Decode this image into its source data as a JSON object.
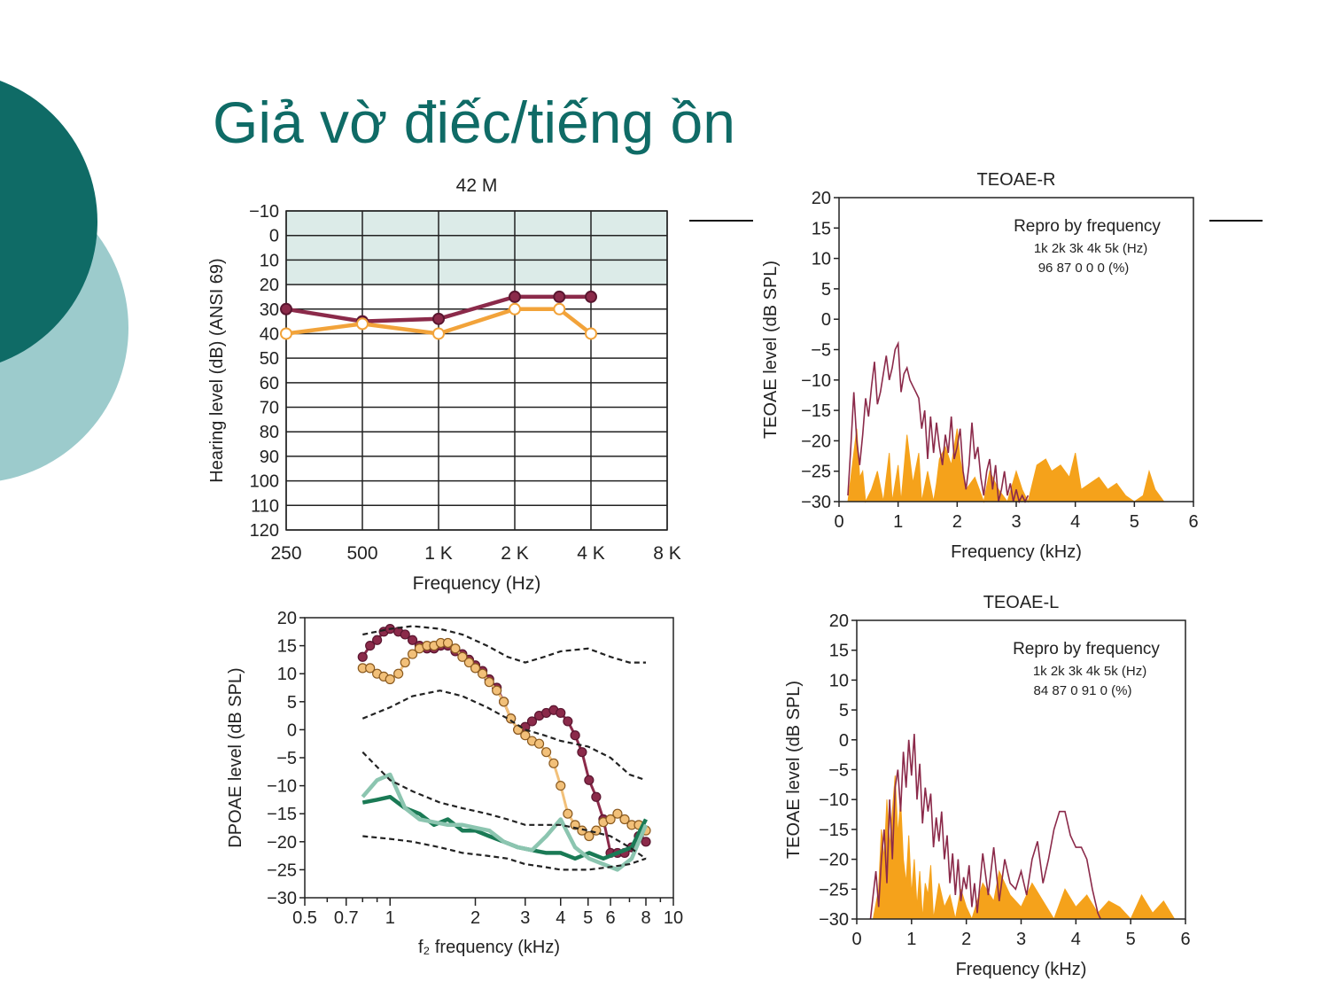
{
  "slide": {
    "title": "Giả vờ điếc/tiếng ồn",
    "colors": {
      "title": "#0f6b66",
      "circle_dark": "#0f6b66",
      "circle_light": "#9ccbcc"
    }
  },
  "chart_data": [
    {
      "id": "audiogram",
      "type": "line",
      "title": "42 M",
      "xlabel": "Frequency (Hz)",
      "ylabel": "Hearing level (dB) (ANSI 69)",
      "x_tick_labels": [
        "250",
        "500",
        "1 K",
        "2 K",
        "4 K",
        "8 K"
      ],
      "y_tick_labels": [
        "−10",
        "0",
        "10",
        "20",
        "30",
        "40",
        "50",
        "60",
        "70",
        "80",
        "90",
        "100",
        "110",
        "120"
      ],
      "ylim": [
        -10,
        120
      ],
      "y_inverted": true,
      "normal_band": [
        -10,
        20
      ],
      "series": [
        {
          "color": "#8b2a4a",
          "x": [
            250,
            500,
            1000,
            2000,
            3000,
            4000
          ],
          "y": [
            30,
            35,
            34,
            25,
            25,
            25
          ]
        },
        {
          "color": "#f2a33a",
          "x": [
            250,
            500,
            1000,
            2000,
            3000,
            4000
          ],
          "y": [
            40,
            36,
            40,
            30,
            30,
            40
          ]
        }
      ]
    },
    {
      "id": "teoae-r",
      "type": "area",
      "title": "TEOAE-R",
      "xlabel": "Frequency (kHz)",
      "ylabel": "TEOAE level (dB SPL)",
      "xlim": [
        0,
        6
      ],
      "ylim": [
        -30,
        20
      ],
      "x_tick_labels": [
        "0",
        "1",
        "2",
        "3",
        "4",
        "5",
        "6"
      ],
      "y_tick_labels": [
        "20",
        "15",
        "10",
        "5",
        "0",
        "−5",
        "−10",
        "−15",
        "−20",
        "−25",
        "−30"
      ],
      "repro": {
        "heading": "Repro by frequency",
        "freqs": "1k  2k  3k  4k  5k  (Hz)",
        "values": "96  87   0    0    0   (%)"
      },
      "response_line": {
        "color": "#8b2a4a",
        "x": [
          0.15,
          0.2,
          0.25,
          0.3,
          0.35,
          0.4,
          0.45,
          0.5,
          0.55,
          0.6,
          0.65,
          0.7,
          0.75,
          0.8,
          0.85,
          0.9,
          0.95,
          1.0,
          1.05,
          1.1,
          1.15,
          1.2,
          1.25,
          1.3,
          1.35,
          1.4,
          1.45,
          1.5,
          1.55,
          1.6,
          1.65,
          1.7,
          1.75,
          1.8,
          1.85,
          1.9,
          1.95,
          2.0,
          2.05,
          2.1,
          2.15,
          2.2,
          2.25,
          2.3,
          2.35,
          2.4,
          2.45,
          2.5,
          2.55,
          2.6,
          2.65,
          2.7,
          2.75,
          2.8,
          2.85,
          2.9,
          2.95,
          3.0,
          3.05,
          3.1,
          3.15,
          3.2
        ],
        "y": [
          -29,
          -21,
          -12,
          -20,
          -24,
          -19,
          -13,
          -16,
          -11,
          -7,
          -14,
          -12,
          -9,
          -6,
          -10,
          -8,
          -5,
          -4,
          -12,
          -9,
          -8,
          -10,
          -11,
          -12,
          -13,
          -18,
          -15,
          -23,
          -16,
          -22,
          -17,
          -21,
          -24,
          -19,
          -22,
          -16,
          -23,
          -21,
          -18,
          -25,
          -28,
          -24,
          -17,
          -23,
          -21,
          -26,
          -29,
          -25,
          -23,
          -28,
          -24,
          -30,
          -28,
          -25,
          -29,
          -27,
          -30,
          -28,
          -30,
          -29,
          -30,
          -29
        ]
      },
      "noise_fill": {
        "color": "#f5a21b",
        "x": [
          0.15,
          0.25,
          0.3,
          0.35,
          0.4,
          0.45,
          0.55,
          0.65,
          0.75,
          0.85,
          0.9,
          1.0,
          1.05,
          1.15,
          1.25,
          1.35,
          1.4,
          1.5,
          1.6,
          1.65,
          1.7,
          1.8,
          1.9,
          2.0,
          2.05,
          2.15,
          2.3,
          2.45,
          2.55,
          2.7,
          2.85,
          3.0,
          3.1,
          3.2,
          3.35,
          3.5,
          3.6,
          3.75,
          3.9,
          4.0,
          4.1,
          4.25,
          4.4,
          4.55,
          4.7,
          4.85,
          5.0,
          5.15,
          5.25,
          5.35,
          5.5,
          5.6
        ],
        "y": [
          -30,
          -22,
          -18,
          -26,
          -25,
          -30,
          -28,
          -25,
          -30,
          -22,
          -30,
          -24,
          -30,
          -19,
          -27,
          -22,
          -30,
          -25,
          -30,
          -27,
          -23,
          -21,
          -24,
          -18,
          -23,
          -28,
          -26,
          -30,
          -25,
          -28,
          -30,
          -25,
          -28,
          -30,
          -24,
          -23,
          -25,
          -24,
          -26,
          -22,
          -28,
          -27,
          -26,
          -28,
          -27,
          -29,
          -30,
          -29,
          -25,
          -28,
          -30,
          -30
        ]
      }
    },
    {
      "id": "dpoae",
      "type": "line",
      "xlabel": "f₂ frequency (kHz)",
      "ylabel": "DPOAE level (dB SPL)",
      "x_scale": "log",
      "xlim": [
        0.5,
        10
      ],
      "ylim": [
        -30,
        20
      ],
      "x_tick_labels": [
        "0.5",
        "0.7",
        "1",
        "2",
        "3",
        "4",
        "5",
        "6",
        "8",
        "10"
      ],
      "y_tick_labels": [
        "20",
        "15",
        "10",
        "5",
        "0",
        "−5",
        "−10",
        "−15",
        "−20",
        "−25",
        "−30"
      ],
      "series": [
        {
          "style": "dots",
          "color": "#8b2a4a",
          "x": [
            0.8,
            0.85,
            0.9,
            0.95,
            1.0,
            1.07,
            1.13,
            1.2,
            1.27,
            1.35,
            1.43,
            1.51,
            1.6,
            1.7,
            1.8,
            1.9,
            2.0,
            2.12,
            2.24,
            2.38,
            2.52,
            2.67,
            2.83,
            3.0,
            3.17,
            3.36,
            3.56,
            3.78,
            4.0,
            4.24,
            4.5,
            4.76,
            5.04,
            5.34,
            5.66,
            6.0,
            6.35,
            6.73,
            7.13,
            7.55,
            8.0
          ],
          "y": [
            13,
            15,
            16,
            17.5,
            18,
            17.5,
            17,
            16,
            15,
            14.5,
            14.5,
            15,
            15,
            14,
            13.5,
            12.5,
            11.5,
            10.5,
            9,
            7.5,
            5,
            2,
            0,
            0.5,
            1.5,
            2.5,
            3,
            3.5,
            3,
            1.5,
            -1,
            -4,
            -9,
            -12,
            -16,
            -22,
            -22,
            -22,
            -21,
            -19,
            -20
          ]
        },
        {
          "style": "dots",
          "color": "#f2c079",
          "x": [
            0.8,
            0.85,
            0.9,
            0.95,
            1.0,
            1.07,
            1.13,
            1.2,
            1.27,
            1.35,
            1.43,
            1.51,
            1.6,
            1.7,
            1.8,
            1.9,
            2.0,
            2.12,
            2.24,
            2.38,
            2.52,
            2.67,
            2.83,
            3.0,
            3.17,
            3.36,
            3.56,
            3.78,
            4.0,
            4.24,
            4.5,
            4.76,
            5.04,
            5.34,
            5.66,
            6.0,
            6.35,
            6.73,
            7.13,
            7.55,
            8.0
          ],
          "y": [
            11,
            11,
            10,
            9.5,
            9,
            10,
            12,
            13.5,
            14.5,
            15,
            15,
            15.5,
            15.5,
            14.5,
            13,
            12,
            11,
            10,
            8.5,
            7,
            5,
            2,
            0,
            -1,
            -2,
            -2.5,
            -4,
            -6,
            -10,
            -15,
            -17,
            -18,
            -19,
            -18,
            -16.5,
            -16,
            -15,
            -16,
            -17,
            -17,
            -18
          ]
        },
        {
          "style": "line",
          "color": "#1a7a55",
          "x": [
            0.8,
            0.9,
            1.0,
            1.13,
            1.27,
            1.43,
            1.6,
            1.8,
            2.0,
            2.24,
            2.52,
            2.83,
            3.17,
            3.56,
            4.0,
            4.5,
            5.04,
            5.66,
            6.35,
            7.13,
            8.0
          ],
          "y": [
            -13,
            -12.5,
            -12,
            -14,
            -15,
            -17,
            -16,
            -18,
            -18,
            -19,
            -20,
            -21,
            -21.5,
            -22,
            -22,
            -23,
            -22,
            -23,
            -22,
            -21,
            -16
          ]
        },
        {
          "style": "line",
          "color": "#8cc5b0",
          "x": [
            0.8,
            0.9,
            1.0,
            1.13,
            1.27,
            1.43,
            1.6,
            1.8,
            2.0,
            2.24,
            2.52,
            2.83,
            3.17,
            3.56,
            4.0,
            4.5,
            5.04,
            5.66,
            6.35,
            7.13,
            8.0
          ],
          "y": [
            -12,
            -9,
            -8,
            -14,
            -16,
            -16.5,
            -17,
            -17,
            -17.5,
            -18,
            -20,
            -21,
            -21.5,
            -19,
            -16,
            -21,
            -23,
            -24,
            -25,
            -23,
            -17
          ]
        },
        {
          "style": "dashed",
          "color": "#222222",
          "x": [
            0.8,
            1.0,
            1.2,
            1.5,
            1.8,
            2.2,
            2.6,
            3.0,
            3.5,
            4.0,
            5.0,
            6.0,
            7.0,
            8.0
          ],
          "y": [
            17,
            18,
            18.5,
            18,
            17,
            15,
            13,
            12,
            13,
            14,
            14.5,
            13,
            12,
            12
          ]
        },
        {
          "style": "dashed",
          "color": "#222222",
          "x": [
            0.8,
            1.0,
            1.2,
            1.5,
            1.8,
            2.2,
            2.6,
            3.0,
            3.5,
            4.0,
            5.0,
            6.0,
            7.0,
            8.0
          ],
          "y": [
            2,
            4,
            6,
            7,
            6,
            4,
            2,
            0,
            -1,
            -2,
            -3,
            -5,
            -8,
            -9
          ]
        },
        {
          "style": "dashed",
          "color": "#222222",
          "x": [
            0.8,
            1.0,
            1.2,
            1.5,
            1.8,
            2.2,
            2.6,
            3.0,
            3.5,
            4.0,
            5.0,
            6.0,
            7.0,
            8.0
          ],
          "y": [
            -4,
            -9,
            -11,
            -13,
            -14,
            -15,
            -16,
            -17,
            -17,
            -17,
            -18,
            -19,
            -21,
            -23
          ]
        },
        {
          "style": "dashed",
          "color": "#222222",
          "x": [
            0.8,
            1.0,
            1.2,
            1.5,
            1.8,
            2.2,
            2.6,
            3.0,
            3.5,
            4.0,
            5.0,
            6.0,
            7.0,
            8.0
          ],
          "y": [
            -19,
            -19.5,
            -20,
            -21,
            -22,
            -22.5,
            -23,
            -24,
            -24.5,
            -25,
            -25,
            -24.5,
            -24,
            -23
          ]
        }
      ]
    },
    {
      "id": "teoae-l",
      "type": "area",
      "title": "TEOAE-L",
      "xlabel": "Frequency (kHz)",
      "ylabel": "TEOAE level (dB SPL)",
      "xlim": [
        0,
        6
      ],
      "ylim": [
        -30,
        20
      ],
      "x_tick_labels": [
        "0",
        "1",
        "2",
        "3",
        "4",
        "5",
        "6"
      ],
      "y_tick_labels": [
        "20",
        "15",
        "10",
        "5",
        "0",
        "−5",
        "−10",
        "−15",
        "−20",
        "−25",
        "−30"
      ],
      "repro": {
        "heading": "Repro by frequency",
        "freqs": "1k  2k  3k  4k  5k  (Hz)",
        "values": "84  87   0   91   0   (%)"
      },
      "response_line": {
        "color": "#8b2a4a",
        "x": [
          0.25,
          0.3,
          0.35,
          0.4,
          0.45,
          0.5,
          0.55,
          0.6,
          0.65,
          0.7,
          0.75,
          0.8,
          0.85,
          0.9,
          0.95,
          1.0,
          1.05,
          1.1,
          1.15,
          1.2,
          1.25,
          1.3,
          1.35,
          1.4,
          1.45,
          1.5,
          1.55,
          1.6,
          1.65,
          1.7,
          1.75,
          1.8,
          1.85,
          1.9,
          1.95,
          2.0,
          2.05,
          2.1,
          2.15,
          2.2,
          2.3,
          2.4,
          2.5,
          2.6,
          2.7,
          2.8,
          2.9,
          3.0,
          3.1,
          3.2,
          3.3,
          3.4,
          3.5,
          3.6,
          3.7,
          3.8,
          3.9,
          4.0,
          4.1,
          4.2,
          4.3,
          4.4,
          4.45
        ],
        "y": [
          -30,
          -26,
          -22,
          -28,
          -20,
          -15,
          -24,
          -10,
          -20,
          -8,
          -5,
          -12,
          -2,
          -8,
          0,
          -6,
          1,
          -10,
          -4,
          -14,
          -8,
          -12,
          -9,
          -18,
          -13,
          -17,
          -12,
          -20,
          -16,
          -24,
          -19,
          -26,
          -20,
          -27,
          -23,
          -25,
          -21,
          -28,
          -24,
          -29,
          -19,
          -26,
          -18,
          -27,
          -20,
          -24,
          -25,
          -22,
          -26,
          -20,
          -17,
          -24,
          -20,
          -15,
          -12,
          -12,
          -16,
          -18,
          -18,
          -20,
          -25,
          -29,
          -30
        ]
      },
      "noise_fill": {
        "color": "#f5a21b",
        "x": [
          0.3,
          0.4,
          0.45,
          0.5,
          0.55,
          0.6,
          0.65,
          0.7,
          0.75,
          0.8,
          0.85,
          0.9,
          0.95,
          1.0,
          1.05,
          1.1,
          1.15,
          1.2,
          1.25,
          1.3,
          1.35,
          1.4,
          1.5,
          1.6,
          1.7,
          1.8,
          1.9,
          2.0,
          2.1,
          2.3,
          2.5,
          2.6,
          2.8,
          3.0,
          3.2,
          3.4,
          3.6,
          3.8,
          4.0,
          4.2,
          4.4,
          4.6,
          4.8,
          5.0,
          5.2,
          5.4,
          5.6,
          5.8
        ],
        "y": [
          -30,
          -25,
          -15,
          -20,
          -10,
          -18,
          -12,
          -6,
          -16,
          -10,
          -20,
          -24,
          -16,
          -26,
          -20,
          -28,
          -22,
          -30,
          -24,
          -26,
          -21,
          -30,
          -24,
          -28,
          -26,
          -30,
          -25,
          -28,
          -30,
          -24,
          -27,
          -22,
          -26,
          -28,
          -24,
          -27,
          -30,
          -25,
          -28,
          -26,
          -29,
          -27,
          -28,
          -30,
          -26,
          -29,
          -27,
          -30
        ]
      }
    }
  ]
}
